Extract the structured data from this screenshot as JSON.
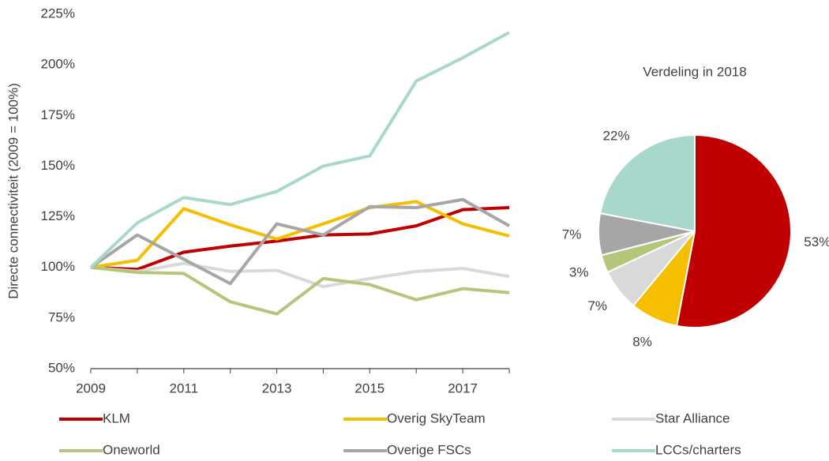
{
  "chart_data": [
    {
      "type": "line",
      "y_label": "Directe connectiviteit (2009 = 100%)",
      "x": [
        2009,
        2010,
        2011,
        2012,
        2013,
        2014,
        2015,
        2016,
        2017,
        2018
      ],
      "xlim": [
        2009,
        2018
      ],
      "xticks": [
        2009,
        2011,
        2013,
        2015,
        2017
      ],
      "xminor_ticks": [
        2010,
        2012,
        2014,
        2016,
        2018
      ],
      "ylim": [
        50,
        225
      ],
      "yticks": [
        {
          "value": 50,
          "label": "50%"
        },
        {
          "value": 75,
          "label": "75%"
        },
        {
          "value": 100,
          "label": "100%"
        },
        {
          "value": 125,
          "label": "125%"
        },
        {
          "value": 150,
          "label": "150%"
        },
        {
          "value": 175,
          "label": "175%"
        },
        {
          "value": 200,
          "label": "200%"
        },
        {
          "value": 225,
          "label": "225%"
        }
      ],
      "series": [
        {
          "name": "KLM",
          "color": "#c00000",
          "values": [
            100,
            99,
            107.5,
            110.5,
            113,
            116,
            116.5,
            120.5,
            128.5,
            129.5
          ]
        },
        {
          "name": "Overig SkyTeam",
          "color": "#f5bf00",
          "values": [
            100,
            103.5,
            129,
            121,
            114,
            121.5,
            129.5,
            132.5,
            121.5,
            115.5
          ]
        },
        {
          "name": "Star Alliance",
          "color": "#d9d9d9",
          "values": [
            100,
            98,
            102,
            98,
            98.5,
            90.5,
            94.5,
            98,
            99.5,
            95.5
          ]
        },
        {
          "name": "Oneworld",
          "color": "#b4c67a",
          "values": [
            100,
            97.5,
            97,
            83,
            77,
            94.5,
            91.5,
            84,
            89.5,
            87.5
          ]
        },
        {
          "name": "Overige FSCs",
          "color": "#a6a6a6",
          "values": [
            100,
            116,
            104,
            92,
            121.5,
            116,
            130,
            129.5,
            133.5,
            120.5
          ]
        },
        {
          "name": "LCCs/charters",
          "color": "#a8d8cb",
          "values": [
            100,
            122,
            134.5,
            131,
            137.5,
            150,
            155,
            192,
            203.5,
            216
          ]
        }
      ]
    },
    {
      "type": "pie",
      "title": "Verdeling in 2018",
      "values": [
        53,
        8,
        7,
        3,
        7,
        22
      ],
      "value_labels": [
        "53%",
        "8%",
        "7%",
        "3%",
        "7%",
        "22%"
      ],
      "colors": [
        "#c00000",
        "#f5bf00",
        "#d9d9d9",
        "#b4c67a",
        "#a6a6a6",
        "#a8d8cb"
      ]
    }
  ]
}
